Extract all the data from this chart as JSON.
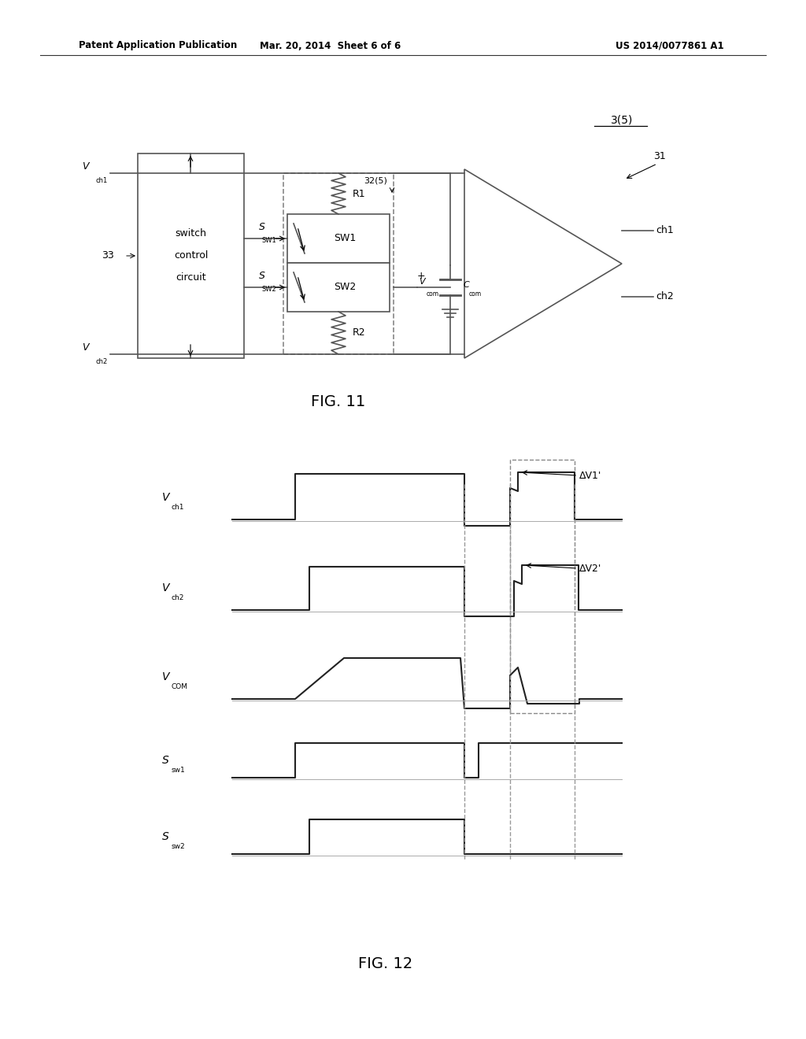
{
  "bg_color": "#ffffff",
  "header_left": "Patent Application Publication",
  "header_mid": "Mar. 20, 2014  Sheet 6 of 6",
  "header_right": "US 2014/0077861 A1",
  "fig11_label": "FIG. 11",
  "fig12_label": "FIG. 12",
  "label_35": "3(5)",
  "label_31": "31",
  "label_33": "33",
  "label_32": "32(5)",
  "switch_box_label1": "switch",
  "switch_box_label2": "control",
  "switch_box_label3": "circuit",
  "line_color": "#555555",
  "text_color": "#000000",
  "dashed_color": "#888888",
  "delta_v1": "ΔV1'",
  "delta_v2": "ΔV2'"
}
